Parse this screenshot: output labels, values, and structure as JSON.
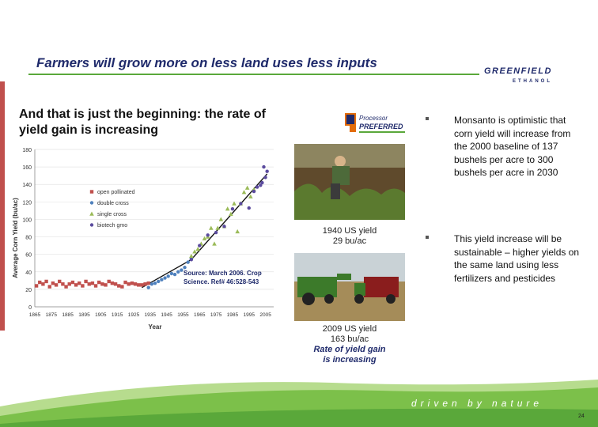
{
  "slide": {
    "title": "Farmers will grow more on less land uses less inputs",
    "page_number": "24",
    "tagline": "driven by nature",
    "logo": {
      "main": "GREENFIELD",
      "sub": "ETHANOL"
    }
  },
  "chart_panel": {
    "heading": "And that is just the beginning:  the rate of yield gain is increasing",
    "source": "Source: March 2006.  Crop Science. Ref# 46:528-543"
  },
  "chart_data": {
    "type": "scatter",
    "title": "",
    "xlabel": "Year",
    "ylabel": "Average Corn Yield (bu/ac)",
    "xlim": [
      1865,
      2010
    ],
    "ylim": [
      0,
      180
    ],
    "x_ticks": [
      "1865",
      "1875",
      "1885",
      "1895",
      "1905",
      "1915",
      "1925",
      "1935",
      "1945",
      "1955",
      "1965",
      "1975",
      "1985",
      "1995",
      "2005"
    ],
    "y_ticks": [
      "0",
      "20",
      "40",
      "60",
      "80",
      "100",
      "120",
      "140",
      "160",
      "180"
    ],
    "legend_position": "upper-left",
    "series": [
      {
        "name": "open pollinated",
        "color": "#c0504d",
        "marker": "square",
        "x": [
          1866,
          1868,
          1870,
          1872,
          1874,
          1876,
          1878,
          1880,
          1882,
          1884,
          1886,
          1888,
          1890,
          1892,
          1894,
          1896,
          1898,
          1900,
          1902,
          1904,
          1906,
          1908,
          1910,
          1912,
          1914,
          1916,
          1918,
          1920,
          1922,
          1924,
          1926,
          1928,
          1930,
          1932,
          1934
        ],
        "y": [
          24,
          28,
          26,
          29,
          23,
          27,
          25,
          29,
          26,
          23,
          26,
          28,
          25,
          27,
          24,
          29,
          26,
          27,
          24,
          28,
          26,
          25,
          29,
          27,
          26,
          24,
          23,
          28,
          26,
          27,
          26,
          25,
          25,
          26,
          27
        ]
      },
      {
        "name": "double cross",
        "color": "#4f81bd",
        "marker": "circle",
        "x": [
          1934,
          1936,
          1938,
          1940,
          1942,
          1944,
          1946,
          1948,
          1950,
          1952,
          1954,
          1956,
          1958,
          1960
        ],
        "y": [
          22,
          26,
          27,
          29,
          31,
          33,
          35,
          38,
          37,
          40,
          42,
          45,
          51,
          55
        ]
      },
      {
        "name": "single cross",
        "color": "#9bbb59",
        "marker": "triangle",
        "x": [
          1960,
          1962,
          1964,
          1966,
          1968,
          1970,
          1972,
          1974,
          1976,
          1978,
          1980,
          1982,
          1984,
          1986,
          1988,
          1990,
          1992,
          1994,
          1996,
          1998
        ],
        "y": [
          58,
          63,
          66,
          72,
          78,
          80,
          90,
          72,
          90,
          100,
          92,
          112,
          106,
          118,
          86,
          118,
          131,
          136,
          126,
          134
        ]
      },
      {
        "name": "biotech gmo",
        "color": "#5b4b9e",
        "marker": "circle",
        "x": [
          1960,
          1965,
          1970,
          1975,
          1980,
          1985,
          1990,
          1995,
          1998,
          2000,
          2002,
          2003,
          2004,
          2005,
          2006
        ],
        "y": [
          54,
          70,
          82,
          85,
          92,
          112,
          118,
          113,
          132,
          137,
          139,
          142,
          160,
          148,
          155
        ]
      }
    ],
    "trend_lines": [
      {
        "x": [
          1930,
          1960
        ],
        "y": [
          22,
          54
        ]
      },
      {
        "x": [
          1960,
          2006
        ],
        "y": [
          54,
          152
        ]
      }
    ]
  },
  "photos": {
    "badge": {
      "line1": "Processor",
      "line2": "PREFERRED"
    },
    "caption1": {
      "line1": "1940 US yield",
      "line2": "29 bu/ac"
    },
    "caption2": {
      "line1": "2009 US yield",
      "line2": "163 bu/ac",
      "line3": "Rate of yield gain",
      "line4": "is increasing"
    }
  },
  "bullets": [
    "Monsanto is optimistic that corn yield will increase from the 2000 baseline of 137 bushels per acre to 300 bushels per acre in 2030",
    "This yield increase will be sustainable – higher yields on the same land using less fertilizers and pesticides"
  ],
  "colors": {
    "title": "#1f2a6b",
    "rule": "#5aa83a",
    "footer_green": "#7cc04a",
    "accent_red": "#c0504d"
  }
}
